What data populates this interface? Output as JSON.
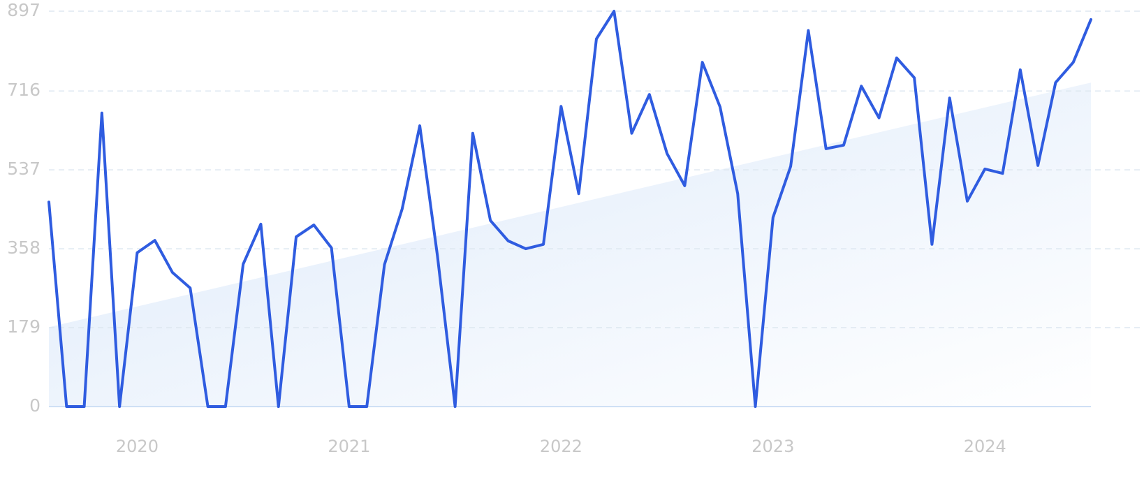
{
  "chart_data": {
    "type": "line",
    "categories": [
      null,
      null,
      null,
      null,
      null,
      "2020",
      null,
      null,
      null,
      null,
      null,
      null,
      null,
      null,
      null,
      null,
      null,
      "2021",
      null,
      null,
      null,
      null,
      null,
      null,
      null,
      null,
      null,
      null,
      null,
      "2022",
      null,
      null,
      null,
      null,
      null,
      null,
      null,
      null,
      null,
      null,
      null,
      "2023",
      null,
      null,
      null,
      null,
      null,
      null,
      null,
      null,
      null,
      null,
      null,
      "2024",
      null,
      null,
      null,
      null,
      null,
      null
    ],
    "series": [
      {
        "color": "#2f5ce0",
        "values": [
          464,
          0,
          0,
          666,
          0,
          349,
          377,
          304,
          269,
          0,
          0,
          323,
          414,
          0,
          385,
          412,
          360,
          0,
          0,
          322,
          448,
          637,
          342,
          0,
          620,
          422,
          376,
          358,
          368,
          681,
          483,
          834,
          897,
          620,
          708,
          574,
          501,
          781,
          680,
          483,
          0,
          429,
          545,
          853,
          585,
          593,
          727,
          655,
          791,
          746,
          368,
          700,
          466,
          539,
          529,
          764,
          547,
          735,
          781,
          878
        ]
      }
    ],
    "trend": {
      "color": "#dde9fa",
      "values": [
        180,
        735
      ]
    },
    "ylim": [
      0,
      897
    ],
    "yticks": [
      0,
      179,
      358,
      537,
      716,
      897
    ],
    "grid": true
  }
}
